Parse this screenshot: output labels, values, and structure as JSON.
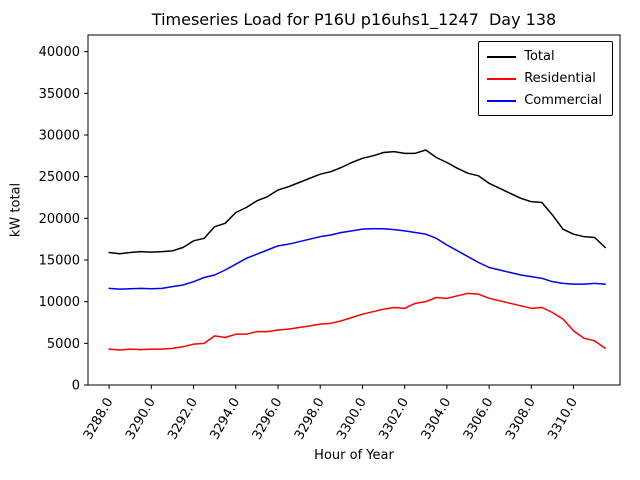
{
  "chart_data": {
    "type": "line",
    "title": "Timeseries Load for P16U p16uhs1_1247  Day 138",
    "xlabel": "Hour of Year",
    "ylabel": "kW total",
    "legend_position": "upper right",
    "grid": false,
    "xlim": [
      3287.0,
      3312.2
    ],
    "ylim": [
      0,
      42000
    ],
    "xticks": [
      3288,
      3290,
      3292,
      3294,
      3296,
      3298,
      3300,
      3302,
      3304,
      3306,
      3308,
      3310
    ],
    "xtick_labels": [
      "3288.0",
      "3290.0",
      "3292.0",
      "3294.0",
      "3296.0",
      "3298.0",
      "3300.0",
      "3302.0",
      "3304.0",
      "3306.0",
      "3308.0",
      "3310.0"
    ],
    "yticks": [
      0,
      5000,
      10000,
      15000,
      20000,
      25000,
      30000,
      35000,
      40000
    ],
    "x": [
      3288.0,
      3288.5,
      3289.0,
      3289.5,
      3290.0,
      3290.5,
      3291.0,
      3291.5,
      3292.0,
      3292.5,
      3293.0,
      3293.5,
      3294.0,
      3294.5,
      3295.0,
      3295.5,
      3296.0,
      3296.5,
      3297.0,
      3297.5,
      3298.0,
      3298.5,
      3299.0,
      3299.5,
      3300.0,
      3300.5,
      3301.0,
      3301.5,
      3302.0,
      3302.5,
      3303.0,
      3303.5,
      3304.0,
      3304.5,
      3305.0,
      3305.5,
      3306.0,
      3306.5,
      3307.0,
      3307.5,
      3308.0,
      3308.5,
      3309.0,
      3309.5,
      3310.0,
      3310.5,
      3311.0,
      3311.5
    ],
    "series": [
      {
        "name": "Total",
        "color": "#000000",
        "values": [
          15900,
          15750,
          15900,
          16000,
          15950,
          16000,
          16100,
          16500,
          17300,
          17600,
          19000,
          19400,
          20700,
          21300,
          22100,
          22600,
          23400,
          23800,
          24300,
          24800,
          25300,
          25600,
          26100,
          26700,
          27200,
          27500,
          27900,
          28000,
          27800,
          27800,
          28200,
          27300,
          26700,
          26000,
          25400,
          25100,
          24200,
          23600,
          23000,
          22400,
          22000,
          21900,
          20400,
          18700,
          18100,
          17800,
          17700,
          16500
        ]
      },
      {
        "name": "Residential",
        "color": "#ff0000",
        "values": [
          4300,
          4200,
          4300,
          4250,
          4300,
          4300,
          4400,
          4600,
          4900,
          5000,
          5900,
          5700,
          6100,
          6100,
          6400,
          6400,
          6600,
          6700,
          6900,
          7100,
          7300,
          7400,
          7700,
          8100,
          8500,
          8800,
          9100,
          9300,
          9200,
          9800,
          10000,
          10500,
          10400,
          10700,
          11000,
          10900,
          10400,
          10100,
          9800,
          9500,
          9200,
          9300,
          8700,
          7900,
          6500,
          5600,
          5300,
          4400
        ]
      },
      {
        "name": "Commercial",
        "color": "#0000ff",
        "values": [
          11600,
          11500,
          11550,
          11600,
          11550,
          11600,
          11800,
          12000,
          12400,
          12900,
          13200,
          13800,
          14500,
          15200,
          15700,
          16200,
          16700,
          16900,
          17200,
          17500,
          17800,
          18000,
          18300,
          18500,
          18700,
          18750,
          18750,
          18650,
          18500,
          18300,
          18100,
          17600,
          16800,
          16100,
          15400,
          14700,
          14100,
          13800,
          13500,
          13200,
          13000,
          12800,
          12400,
          12200,
          12100,
          12100,
          12200,
          12100
        ]
      }
    ]
  }
}
